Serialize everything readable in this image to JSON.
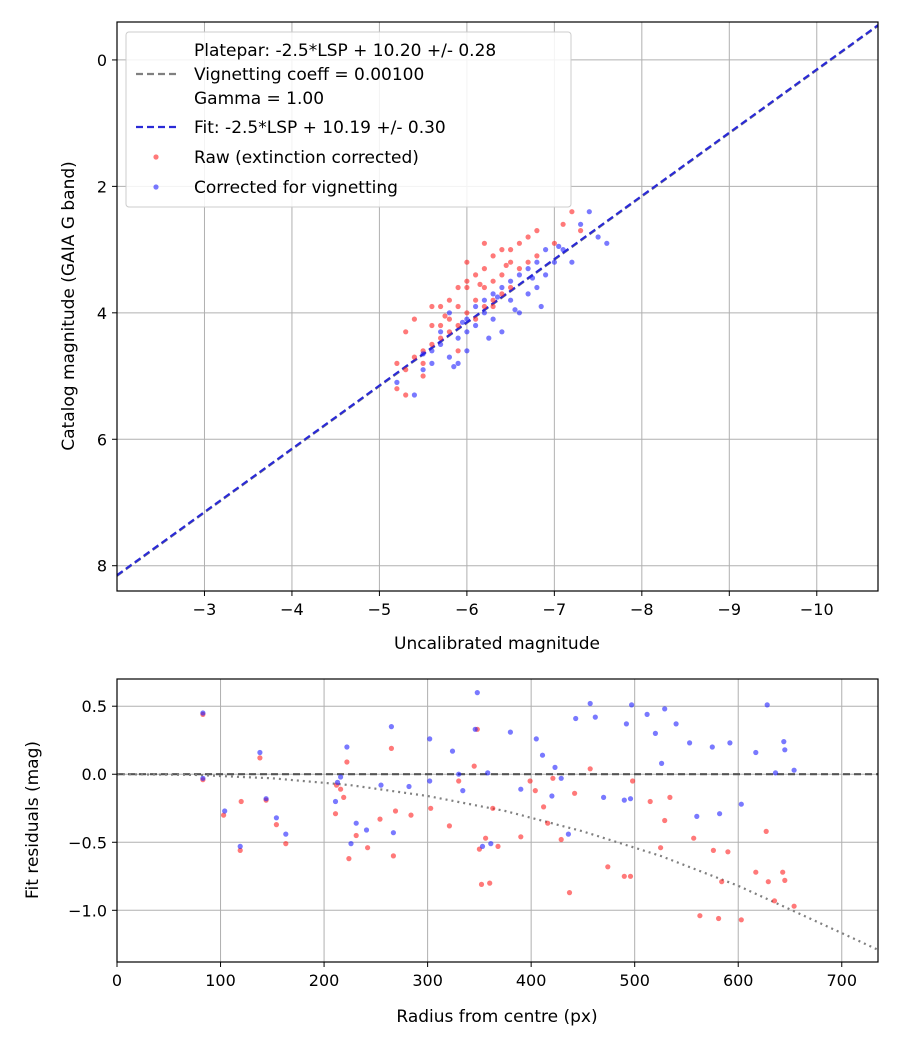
{
  "chart_data": [
    {
      "type": "scatter",
      "xlabel": "Uncalibrated magnitude",
      "ylabel": "Catalog magnitude (GAIA G band)",
      "xlim": [
        -2.0,
        -10.7
      ],
      "ylim": [
        8.4,
        -0.6
      ],
      "x_inverted": true,
      "y_inverted": true,
      "grid": true,
      "legend_placement": "upper-left",
      "x_ticks": [
        -3,
        -4,
        -5,
        -6,
        -7,
        -8,
        -9,
        -10
      ],
      "x_tick_labels": [
        "−3",
        "−4",
        "−5",
        "−6",
        "−7",
        "−8",
        "−9",
        "−10"
      ],
      "y_ticks": [
        0,
        2,
        4,
        6,
        8
      ],
      "y_tick_labels": [
        "0",
        "2",
        "4",
        "6",
        "8"
      ],
      "lines": [
        {
          "name": "Platepar: -2.5*LSP + 10.20 +/- 0.28\nVignetting coeff = 0.00100\nGamma = 1.00",
          "color": "#808080",
          "dash": "dashed",
          "x": [
            -2.0,
            -10.7
          ],
          "y": [
            8.16,
            -0.54
          ]
        },
        {
          "name": "Fit: -2.5*LSP + 10.19 +/- 0.30",
          "color": "#2a2ad6",
          "dash": "dashed",
          "x": [
            -2.0,
            -10.7
          ],
          "y": [
            8.15,
            -0.55
          ]
        }
      ],
      "series": [
        {
          "name": "Raw (extinction corrected)",
          "color": "#ff2020",
          "points": [
            [
              -5.2,
              5.2
            ],
            [
              -5.3,
              5.3
            ],
            [
              -5.2,
              4.8
            ],
            [
              -5.3,
              4.3
            ],
            [
              -5.4,
              4.1
            ],
            [
              -5.4,
              4.7
            ],
            [
              -5.5,
              4.6
            ],
            [
              -5.5,
              4.8
            ],
            [
              -5.5,
              5.0
            ],
            [
              -5.6,
              4.2
            ],
            [
              -5.6,
              4.5
            ],
            [
              -5.7,
              3.9
            ],
            [
              -5.7,
              4.2
            ],
            [
              -5.7,
              4.4
            ],
            [
              -5.8,
              3.8
            ],
            [
              -5.8,
              4.1
            ],
            [
              -5.8,
              4.3
            ],
            [
              -5.9,
              3.6
            ],
            [
              -5.9,
              3.9
            ],
            [
              -5.9,
              4.2
            ],
            [
              -6.0,
              3.2
            ],
            [
              -6.0,
              3.5
            ],
            [
              -6.0,
              4.0
            ],
            [
              -6.1,
              3.4
            ],
            [
              -6.1,
              3.8
            ],
            [
              -6.1,
              4.1
            ],
            [
              -6.2,
              2.9
            ],
            [
              -6.2,
              3.3
            ],
            [
              -6.2,
              3.6
            ],
            [
              -6.2,
              3.9
            ],
            [
              -6.3,
              3.1
            ],
            [
              -6.3,
              3.5
            ],
            [
              -6.3,
              3.8
            ],
            [
              -6.4,
              3.0
            ],
            [
              -6.4,
              3.4
            ],
            [
              -6.4,
              3.7
            ],
            [
              -6.5,
              3.2
            ],
            [
              -6.5,
              3.6
            ],
            [
              -6.6,
              2.9
            ],
            [
              -6.6,
              3.3
            ],
            [
              -6.7,
              2.8
            ],
            [
              -6.7,
              3.2
            ],
            [
              -6.8,
              2.7
            ],
            [
              -6.8,
              3.1
            ],
            [
              -7.0,
              2.9
            ],
            [
              -7.1,
              2.6
            ],
            [
              -7.2,
              2.4
            ],
            [
              -7.3,
              2.7
            ],
            [
              -5.3,
              4.9
            ],
            [
              -5.6,
              3.9
            ],
            [
              -5.9,
              4.6
            ],
            [
              -6.0,
              3.6
            ],
            [
              -6.3,
              3.9
            ],
            [
              -6.5,
              3.0
            ],
            [
              -5.75,
              4.05
            ],
            [
              -6.15,
              3.55
            ],
            [
              -6.45,
              3.25
            ]
          ]
        },
        {
          "name": "Corrected for vignetting",
          "color": "#2020ff",
          "points": [
            [
              -5.2,
              5.1
            ],
            [
              -5.4,
              5.3
            ],
            [
              -5.5,
              4.9
            ],
            [
              -5.6,
              4.6
            ],
            [
              -5.6,
              4.8
            ],
            [
              -5.7,
              4.3
            ],
            [
              -5.7,
              4.5
            ],
            [
              -5.8,
              4.0
            ],
            [
              -5.8,
              4.7
            ],
            [
              -5.9,
              4.4
            ],
            [
              -5.9,
              4.8
            ],
            [
              -6.0,
              4.1
            ],
            [
              -6.0,
              4.3
            ],
            [
              -6.0,
              4.6
            ],
            [
              -6.1,
              3.9
            ],
            [
              -6.1,
              4.2
            ],
            [
              -6.2,
              3.8
            ],
            [
              -6.2,
              4.0
            ],
            [
              -6.3,
              3.7
            ],
            [
              -6.3,
              4.1
            ],
            [
              -6.4,
              3.6
            ],
            [
              -6.4,
              4.3
            ],
            [
              -6.5,
              3.5
            ],
            [
              -6.5,
              3.8
            ],
            [
              -6.6,
              3.4
            ],
            [
              -6.6,
              4.0
            ],
            [
              -6.7,
              3.3
            ],
            [
              -6.7,
              3.7
            ],
            [
              -6.8,
              3.2
            ],
            [
              -6.8,
              3.6
            ],
            [
              -6.9,
              3.0
            ],
            [
              -6.9,
              3.4
            ],
            [
              -7.0,
              3.2
            ],
            [
              -7.1,
              3.0
            ],
            [
              -7.2,
              3.2
            ],
            [
              -7.3,
              2.6
            ],
            [
              -7.4,
              2.4
            ],
            [
              -7.5,
              2.8
            ],
            [
              -7.6,
              2.9
            ],
            [
              -6.85,
              3.9
            ],
            [
              -6.55,
              3.95
            ],
            [
              -5.5,
              4.65
            ],
            [
              -6.25,
              4.4
            ],
            [
              -5.85,
              4.85
            ],
            [
              -7.05,
              2.95
            ],
            [
              -6.35,
              3.75
            ],
            [
              -5.95,
              4.15
            ],
            [
              -6.75,
              3.45
            ]
          ]
        }
      ]
    },
    {
      "type": "scatter",
      "xlabel": "Radius from centre (px)",
      "ylabel": "Fit residuals (mag)",
      "xlim": [
        0,
        735
      ],
      "ylim": [
        -1.38,
        0.7
      ],
      "grid": true,
      "x_ticks": [
        0,
        100,
        200,
        300,
        400,
        500,
        600,
        700
      ],
      "x_tick_labels": [
        "0",
        "100",
        "200",
        "300",
        "400",
        "500",
        "600",
        "700"
      ],
      "y_ticks": [
        0.5,
        0.0,
        -0.5,
        -1.0
      ],
      "y_tick_labels": [
        "0.5",
        "0.0",
        "−0.5",
        "−1.0"
      ],
      "lines": [
        {
          "name": "",
          "color": "#555555",
          "dash": "dashed",
          "x": [
            0,
            735
          ],
          "y": [
            0,
            0
          ]
        },
        {
          "name": "",
          "color": "#808080",
          "dash": "dotted",
          "x": [
            0,
            75,
            150,
            225,
            300,
            375,
            450,
            525,
            600,
            675,
            735
          ],
          "y": [
            0.0,
            -0.005,
            -0.03,
            -0.08,
            -0.16,
            -0.27,
            -0.42,
            -0.6,
            -0.82,
            -1.08,
            -1.29
          ]
        }
      ],
      "series": [
        {
          "name": "Raw (extinction corrected)",
          "color": "#ff2020",
          "points": [
            [
              83,
              0.44
            ],
            [
              83,
              -0.04
            ],
            [
              103,
              -0.3
            ],
            [
              119,
              -0.56
            ],
            [
              120,
              -0.2
            ],
            [
              138,
              0.12
            ],
            [
              144,
              -0.19
            ],
            [
              154,
              -0.37
            ],
            [
              163,
              -0.51
            ],
            [
              211,
              -0.29
            ],
            [
              212,
              -0.08
            ],
            [
              216,
              -0.11
            ],
            [
              219,
              -0.17
            ],
            [
              222,
              0.09
            ],
            [
              224,
              -0.62
            ],
            [
              231,
              -0.45
            ],
            [
              242,
              -0.54
            ],
            [
              254,
              -0.33
            ],
            [
              265,
              0.19
            ],
            [
              267,
              -0.6
            ],
            [
              269,
              -0.27
            ],
            [
              284,
              -0.3
            ],
            [
              303,
              -0.25
            ],
            [
              321,
              -0.38
            ],
            [
              330,
              -0.05
            ],
            [
              345,
              0.06
            ],
            [
              348,
              0.33
            ],
            [
              350,
              -0.55
            ],
            [
              352,
              -0.81
            ],
            [
              356,
              -0.47
            ],
            [
              360,
              -0.8
            ],
            [
              363,
              -0.25
            ],
            [
              368,
              -0.53
            ],
            [
              390,
              -0.46
            ],
            [
              399,
              -0.05
            ],
            [
              404,
              -0.12
            ],
            [
              412,
              -0.24
            ],
            [
              416,
              -0.36
            ],
            [
              421,
              -0.03
            ],
            [
              429,
              -0.48
            ],
            [
              437,
              -0.87
            ],
            [
              442,
              -0.14
            ],
            [
              457,
              0.04
            ],
            [
              474,
              -0.68
            ],
            [
              490,
              -0.75
            ],
            [
              496,
              -0.75
            ],
            [
              498,
              -0.05
            ],
            [
              515,
              -0.2
            ],
            [
              525,
              -0.54
            ],
            [
              529,
              -0.34
            ],
            [
              534,
              -0.17
            ],
            [
              557,
              -0.47
            ],
            [
              563,
              -1.04
            ],
            [
              576,
              -0.56
            ],
            [
              581,
              -1.06
            ],
            [
              584,
              -0.79
            ],
            [
              590,
              -0.57
            ],
            [
              603,
              -1.07
            ],
            [
              617,
              -0.72
            ],
            [
              627,
              -0.42
            ],
            [
              629,
              -0.79
            ],
            [
              635,
              -0.93
            ],
            [
              643,
              -0.72
            ],
            [
              645,
              -0.78
            ],
            [
              654,
              -0.97
            ]
          ]
        },
        {
          "name": "Corrected for vignetting",
          "color": "#2020ff",
          "points": [
            [
              83,
              0.45
            ],
            [
              83,
              -0.03
            ],
            [
              104,
              -0.27
            ],
            [
              119,
              -0.53
            ],
            [
              138,
              0.16
            ],
            [
              144,
              -0.18
            ],
            [
              154,
              -0.32
            ],
            [
              163,
              -0.44
            ],
            [
              211,
              -0.2
            ],
            [
              213,
              -0.06
            ],
            [
              216,
              -0.02
            ],
            [
              222,
              0.2
            ],
            [
              226,
              -0.51
            ],
            [
              231,
              -0.36
            ],
            [
              241,
              -0.41
            ],
            [
              255,
              -0.08
            ],
            [
              265,
              0.35
            ],
            [
              267,
              -0.43
            ],
            [
              282,
              -0.09
            ],
            [
              302,
              0.26
            ],
            [
              302,
              -0.05
            ],
            [
              324,
              0.17
            ],
            [
              330,
              0.0
            ],
            [
              346,
              0.33
            ],
            [
              348,
              0.6
            ],
            [
              353,
              -0.53
            ],
            [
              358,
              0.01
            ],
            [
              361,
              -0.51
            ],
            [
              380,
              0.31
            ],
            [
              390,
              -0.11
            ],
            [
              405,
              0.26
            ],
            [
              411,
              0.14
            ],
            [
              420,
              -0.16
            ],
            [
              429,
              -0.03
            ],
            [
              436,
              -0.44
            ],
            [
              443,
              0.41
            ],
            [
              457,
              0.52
            ],
            [
              462,
              0.42
            ],
            [
              470,
              -0.17
            ],
            [
              490,
              -0.19
            ],
            [
              492,
              0.37
            ],
            [
              497,
              0.51
            ],
            [
              512,
              0.44
            ],
            [
              529,
              0.48
            ],
            [
              540,
              0.37
            ],
            [
              553,
              0.23
            ],
            [
              560,
              -0.31
            ],
            [
              575,
              0.2
            ],
            [
              582,
              -0.29
            ],
            [
              592,
              0.23
            ],
            [
              603,
              -0.22
            ],
            [
              617,
              0.16
            ],
            [
              628,
              0.51
            ],
            [
              636,
              0.01
            ],
            [
              644,
              0.24
            ],
            [
              645,
              0.18
            ],
            [
              654,
              0.03
            ],
            [
              496,
              -0.18
            ],
            [
              423,
              0.05
            ],
            [
              334,
              -0.12
            ],
            [
              526,
              0.08
            ],
            [
              520,
              0.3
            ]
          ]
        }
      ]
    }
  ]
}
